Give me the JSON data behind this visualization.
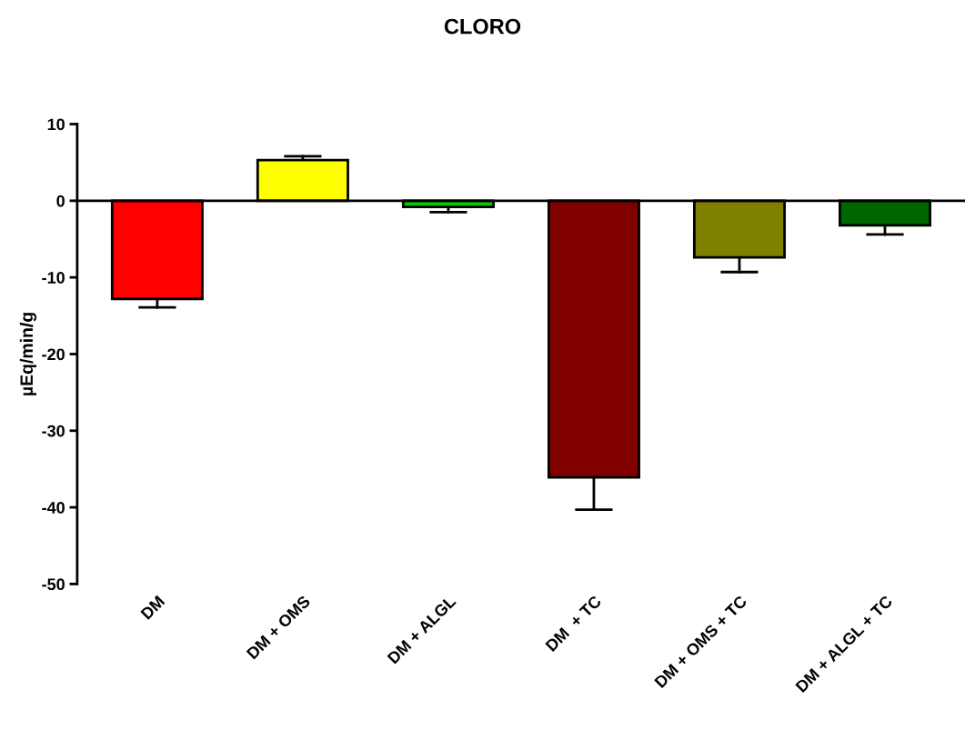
{
  "chart_data": {
    "type": "bar",
    "title": "CLORO",
    "ylabel": "µEq/min/g",
    "categories": [
      "DM",
      "DM + OMS",
      "DM + ALGL",
      "DM  + TC",
      "DM + OMS + TC",
      "DM + ALGL + TC"
    ],
    "values": [
      -12.8,
      5.3,
      -0.8,
      -36.1,
      -7.4,
      -3.2
    ],
    "colors": [
      "#ff0000",
      "#ffff00",
      "#00cc00",
      "#800000",
      "#808000",
      "#006600"
    ],
    "errors": [
      [
        -13.9,
        -12.8
      ],
      [
        5.3,
        5.8
      ],
      [
        -1.5,
        -0.8
      ],
      [
        -40.3,
        -36.1
      ],
      [
        -9.3,
        -7.4
      ],
      [
        -4.4,
        -3.2
      ]
    ],
    "ylim": [
      -50,
      10
    ],
    "yticks": [
      -50,
      -40,
      -30,
      -20,
      -10,
      0,
      10
    ],
    "legend": false
  }
}
